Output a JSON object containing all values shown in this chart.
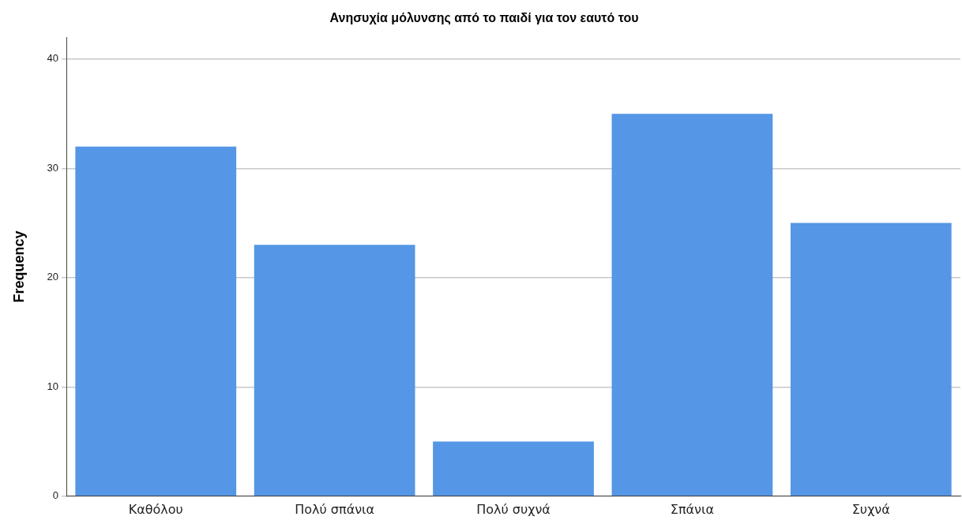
{
  "chart_data": {
    "type": "bar",
    "title": "Ανησυχία μόλυνσης από το παιδί για τον εαυτό του",
    "ylabel": "Frequency",
    "categories": [
      "Καθόλου",
      "Πολύ σπάνια",
      "Πολύ συχνά",
      "Σπάνια",
      "Συχνά"
    ],
    "values": [
      32,
      23,
      5,
      35,
      25
    ],
    "color": "#5596e6",
    "ylim": [
      0,
      42
    ],
    "yticks": [
      0,
      10,
      20,
      30,
      40
    ],
    "grid": "y"
  }
}
